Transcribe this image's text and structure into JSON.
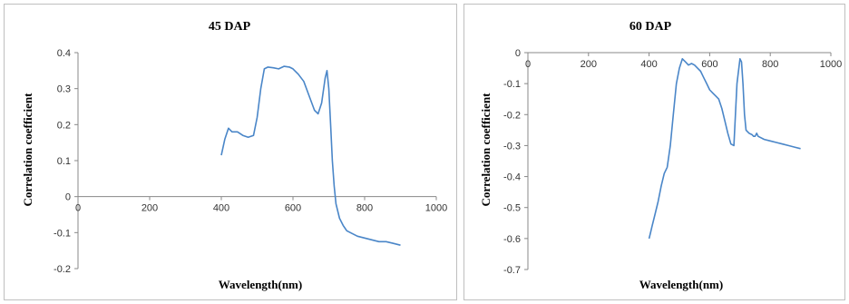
{
  "chart_data": [
    {
      "type": "line",
      "title": "45 DAP",
      "xlabel": "Wavelength(nm)",
      "ylabel": "Correlation coefficient",
      "xlim": [
        0,
        1000
      ],
      "ylim": [
        -0.2,
        0.4
      ],
      "xticks": [
        "0",
        "200",
        "400",
        "600",
        "800",
        "1000"
      ],
      "yticks": [
        "0.4",
        "0.3",
        "0.2",
        "0.1",
        "0",
        "-0.1",
        "-0.2"
      ],
      "grid": false,
      "legend": "none",
      "series": [
        {
          "color": "#4a86c8",
          "x": [
            400,
            410,
            420,
            430,
            445,
            460,
            475,
            490,
            500,
            510,
            520,
            530,
            545,
            560,
            575,
            590,
            600,
            615,
            630,
            645,
            660,
            670,
            680,
            690,
            695,
            700,
            705,
            710,
            715,
            720,
            730,
            740,
            750,
            760,
            780,
            800,
            820,
            840,
            860,
            880,
            900
          ],
          "y": [
            0.115,
            0.16,
            0.19,
            0.18,
            0.18,
            0.17,
            0.165,
            0.17,
            0.22,
            0.3,
            0.355,
            0.36,
            0.358,
            0.355,
            0.362,
            0.36,
            0.355,
            0.34,
            0.32,
            0.28,
            0.24,
            0.23,
            0.26,
            0.33,
            0.35,
            0.3,
            0.2,
            0.1,
            0.03,
            -0.02,
            -0.06,
            -0.08,
            -0.095,
            -0.1,
            -0.11,
            -0.115,
            -0.12,
            -0.125,
            -0.125,
            -0.13,
            -0.135
          ]
        }
      ]
    },
    {
      "type": "line",
      "title": "60 DAP",
      "xlabel": "Wavelength(nm)",
      "ylabel": "Correlation coefficient",
      "xlim": [
        0,
        1000
      ],
      "ylim": [
        -0.7,
        0
      ],
      "xticks": [
        "0",
        "200",
        "400",
        "600",
        "800",
        "1000"
      ],
      "yticks": [
        "0",
        "-0.1",
        "-0.2",
        "-0.3",
        "-0.4",
        "-0.5",
        "-0.6",
        "-0.7"
      ],
      "grid": false,
      "legend": "none",
      "series": [
        {
          "color": "#4a86c8",
          "x": [
            400,
            405,
            410,
            420,
            430,
            440,
            450,
            460,
            470,
            480,
            490,
            500,
            510,
            520,
            530,
            540,
            550,
            560,
            570,
            580,
            590,
            600,
            610,
            620,
            630,
            640,
            650,
            660,
            670,
            680,
            690,
            700,
            705,
            710,
            715,
            720,
            730,
            740,
            745,
            750,
            755,
            760,
            780,
            800,
            820,
            840,
            860,
            880,
            900
          ],
          "y": [
            -0.6,
            -0.58,
            -0.56,
            -0.52,
            -0.48,
            -0.43,
            -0.39,
            -0.37,
            -0.3,
            -0.2,
            -0.1,
            -0.05,
            -0.02,
            -0.03,
            -0.04,
            -0.035,
            -0.04,
            -0.05,
            -0.06,
            -0.08,
            -0.1,
            -0.12,
            -0.13,
            -0.14,
            -0.15,
            -0.18,
            -0.22,
            -0.26,
            -0.295,
            -0.3,
            -0.1,
            -0.02,
            -0.03,
            -0.1,
            -0.2,
            -0.25,
            -0.26,
            -0.265,
            -0.27,
            -0.27,
            -0.26,
            -0.27,
            -0.28,
            -0.285,
            -0.29,
            -0.295,
            -0.3,
            -0.305,
            -0.31
          ]
        }
      ]
    }
  ]
}
